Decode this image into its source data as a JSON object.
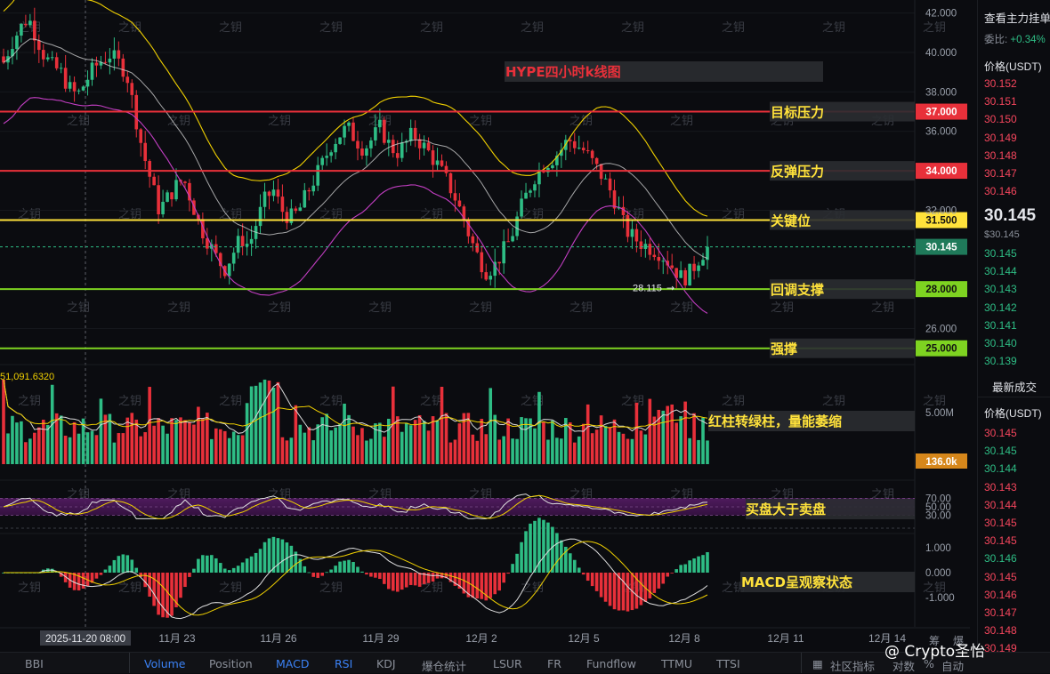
{
  "chart_data": {
    "type": "candlestick",
    "symbol_annotation": "HYPE四小时k线图",
    "price_axis": {
      "ticks": [
        42.0,
        40.0,
        38.0,
        36.0,
        32.0,
        26.0
      ],
      "tick_labels": [
        "42.000",
        "40.000",
        "38.000",
        "36.000",
        "32.000",
        "26.000"
      ],
      "ylim": [
        24.4,
        42.3
      ]
    },
    "date_labels": [
      "11月 23",
      "11月 26",
      "11月 29",
      "12月 2",
      "12月 5",
      "12月 8",
      "12月 11",
      "12月 14"
    ],
    "crosshair_date": "2025-11-20 08:00",
    "levels": [
      {
        "price": 37.0,
        "label": "37.000",
        "annotation": "目标压力",
        "color": "#e8303a"
      },
      {
        "price": 34.0,
        "label": "34.000",
        "annotation": "反弹压力",
        "color": "#e8303a"
      },
      {
        "price": 31.5,
        "label": "31.500",
        "annotation": "关键位",
        "color": "#ffe23b"
      },
      {
        "price": 28.0,
        "label": "28.000",
        "annotation": "回调支撑",
        "color": "#7ed321"
      },
      {
        "price": 25.0,
        "label": "25.000",
        "annotation": "强撑",
        "color": "#7ed321"
      }
    ],
    "last_price": {
      "price": 30.145,
      "label": "30.145"
    },
    "low_marker": {
      "price": 28.115,
      "label": "28.115"
    },
    "close_path": [
      39.5,
      40.5,
      41.2,
      41.8,
      40.8,
      39.8,
      39.3,
      39.0,
      38.2,
      37.8,
      38.5,
      39.2,
      39.6,
      39.9,
      39.5,
      39.0,
      37.0,
      35.0,
      33.5,
      32.0,
      32.6,
      33.2,
      33.6,
      32.4,
      31.2,
      30.4,
      29.6,
      29.0,
      29.8,
      30.6,
      30.2,
      31.5,
      32.6,
      33.0,
      32.0,
      31.6,
      31.9,
      32.8,
      33.6,
      34.4,
      35.3,
      35.8,
      36.2,
      35.6,
      35.1,
      35.6,
      36.2,
      35.4,
      34.9,
      35.3,
      35.9,
      35.4,
      34.9,
      34.3,
      33.6,
      32.8,
      31.8,
      30.6,
      29.6,
      28.9,
      29.2,
      29.9,
      30.6,
      31.9,
      32.9,
      33.8,
      34.3,
      34.6,
      35.0,
      35.6,
      35.3,
      35.0,
      34.4,
      33.8,
      33.1,
      32.2,
      31.0,
      30.6,
      30.3,
      30.1,
      29.9,
      29.5,
      29.0,
      28.5,
      28.9,
      29.6,
      30.145
    ],
    "volume_panel": {
      "readout": "51,091.6320",
      "ticks": [
        {
          "value": 5.0,
          "label": "5.00M"
        }
      ],
      "current_label": "136.0k",
      "annotation": "红柱转绿柱，量能萎缩"
    },
    "rsi_panel": {
      "ticks": [
        70,
        50,
        30
      ],
      "tick_labels": [
        "70.00",
        "50.00",
        "30.00"
      ],
      "annotation": "买盘大于卖盘"
    },
    "macd_panel": {
      "ticks": [
        1.0,
        0.0,
        -1.0
      ],
      "tick_labels": [
        "1.000",
        "0.000",
        "-1.000"
      ],
      "annotation": "MACD呈观察状态"
    },
    "watermark_text": "之钥",
    "low_arrow": "→"
  },
  "orderbook": {
    "header": "查看主力挂单",
    "ratio_label": "委比:",
    "ratio_value": "+0.34%",
    "price_col_label": "价格(USDT)",
    "asks": [
      "30.152",
      "30.151",
      "30.150",
      "30.149",
      "30.148",
      "30.147",
      "30.146"
    ],
    "mid_price": "30.145",
    "mid_sub": "$30.145",
    "bids": [
      "30.145",
      "30.144",
      "30.143",
      "30.142",
      "30.141",
      "30.140",
      "30.139"
    ],
    "recent_label": "最新成交",
    "recent_price_label": "价格(USDT)",
    "trades": [
      {
        "p": "30.145",
        "side": "ask"
      },
      {
        "p": "30.145",
        "side": "bid"
      },
      {
        "p": "30.144",
        "side": "bid"
      },
      {
        "p": "30.143",
        "side": "ask"
      },
      {
        "p": "30.144",
        "side": "ask"
      },
      {
        "p": "30.145",
        "side": "ask"
      },
      {
        "p": "30.145",
        "side": "ask"
      },
      {
        "p": "30.146",
        "side": "bid"
      },
      {
        "p": "30.145",
        "side": "ask"
      },
      {
        "p": "30.146",
        "side": "ask"
      },
      {
        "p": "30.147",
        "side": "ask"
      },
      {
        "p": "30.148",
        "side": "ask"
      },
      {
        "p": "30.149",
        "side": "ask"
      }
    ]
  },
  "toolbar": {
    "items": [
      {
        "label": "BBI",
        "active": false
      },
      {
        "label": "Volume",
        "active": true
      },
      {
        "label": "Position",
        "active": false
      },
      {
        "label": "MACD",
        "active": true
      },
      {
        "label": "RSI",
        "active": true
      },
      {
        "label": "KDJ",
        "active": false
      },
      {
        "label": "爆仓统计",
        "active": false
      },
      {
        "label": "LSUR",
        "active": false
      },
      {
        "label": "FR",
        "active": false
      },
      {
        "label": "Fundflow",
        "active": false
      },
      {
        "label": "TTMU",
        "active": false
      },
      {
        "label": "TTSI",
        "active": false
      }
    ],
    "community_label": "社区指标",
    "log_label": "对数",
    "pct_label": "%",
    "auto_label": "自动",
    "corner_label": "爆",
    "corner_label2": "筹"
  },
  "watermark": "@ Crypto圣怡",
  "colors": {
    "up": "#2ebd85",
    "down": "#e8303a",
    "ma_white": "#d9d9d9",
    "ma_yellow": "#f0d000",
    "band_low": "#c23ec2"
  }
}
